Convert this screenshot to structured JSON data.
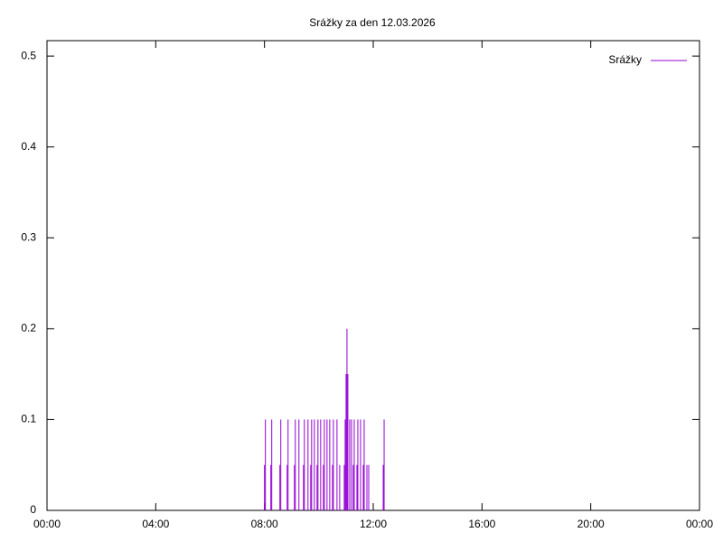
{
  "chart_data": {
    "type": "impulse",
    "title": "Srážky za den 12.03.2026",
    "x": [
      "08:00",
      "08:02",
      "08:14",
      "08:16",
      "08:34",
      "08:36",
      "08:50",
      "08:52",
      "09:06",
      "09:08",
      "09:16",
      "09:26",
      "09:28",
      "09:36",
      "09:42",
      "09:44",
      "09:50",
      "09:56",
      "09:58",
      "10:04",
      "10:10",
      "10:12",
      "10:18",
      "10:24",
      "10:30",
      "10:32",
      "10:40",
      "10:46",
      "10:56",
      "10:58",
      "11:00",
      "11:02",
      "11:04",
      "11:08",
      "11:12",
      "11:16",
      "11:18",
      "11:24",
      "11:26",
      "11:32",
      "11:38",
      "11:40",
      "11:46",
      "11:50",
      "12:22",
      "12:24"
    ],
    "series": [
      {
        "name": "Srážky",
        "color": "#9400d3",
        "values": [
          0.05,
          0.1,
          0.05,
          0.1,
          0.05,
          0.1,
          0.05,
          0.1,
          0.05,
          0.1,
          0.1,
          0.05,
          0.1,
          0.1,
          0.05,
          0.1,
          0.1,
          0.05,
          0.1,
          0.1,
          0.05,
          0.1,
          0.1,
          0.1,
          0.05,
          0.1,
          0.1,
          0.05,
          0.05,
          0.1,
          0.15,
          0.2,
          0.15,
          0.1,
          0.1,
          0.05,
          0.1,
          0.05,
          0.1,
          0.1,
          0.05,
          0.1,
          0.05,
          0.05,
          0.05,
          0.1
        ]
      }
    ],
    "xlim": [
      0,
      24
    ],
    "xticks": [
      {
        "value": 0,
        "label": "00:00"
      },
      {
        "value": 4,
        "label": "04:00"
      },
      {
        "value": 8,
        "label": "08:00"
      },
      {
        "value": 12,
        "label": "12:00"
      },
      {
        "value": 16,
        "label": "16:00"
      },
      {
        "value": 20,
        "label": "20:00"
      },
      {
        "value": 24,
        "label": "00:00"
      }
    ],
    "ylim": [
      0,
      0.517
    ],
    "yticks": [
      0,
      0.1,
      0.2,
      0.3,
      0.4,
      0.5
    ],
    "legend": "top-right"
  }
}
